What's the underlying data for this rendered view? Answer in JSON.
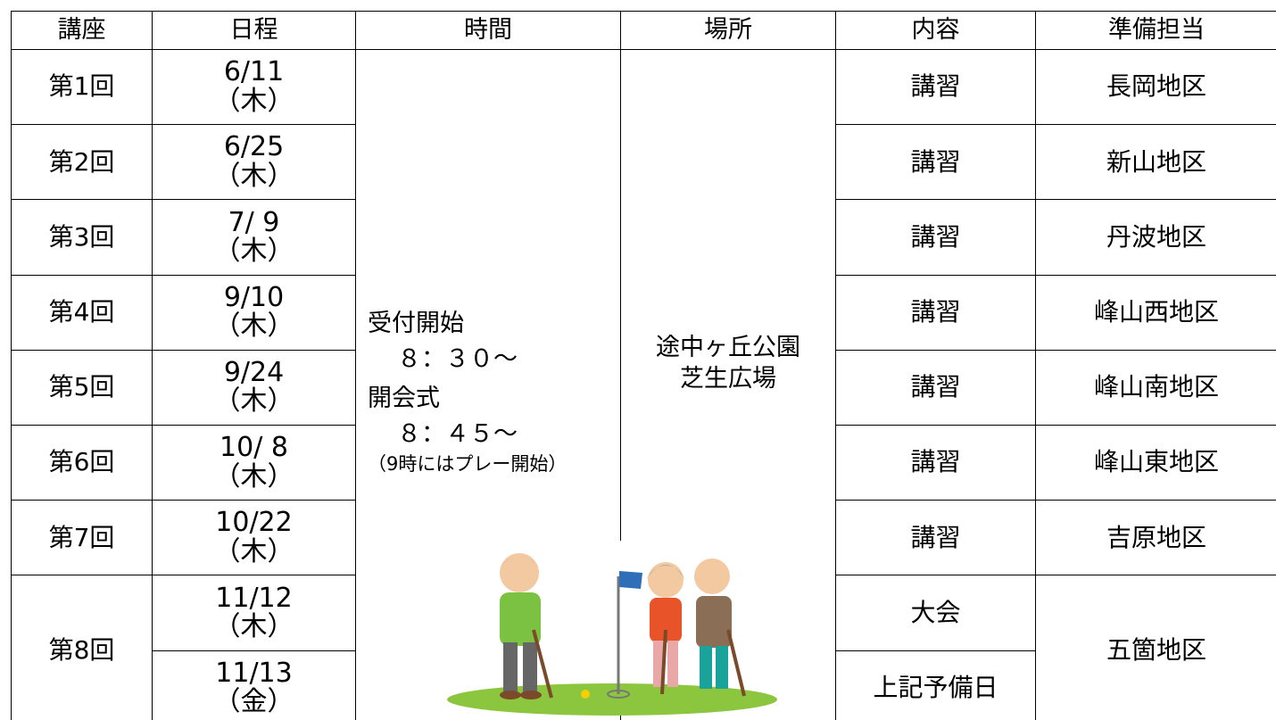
{
  "header": [
    "講座",
    "日程",
    "時間",
    "場所",
    "内容",
    "準備担当"
  ],
  "rows": [
    {
      "lecture": "第1回",
      "date": "6/11",
      "weekday": "（木）",
      "content": "講習",
      "prep": "長岡地区"
    },
    {
      "lecture": "第2回",
      "date": "6/25",
      "weekday": "（木）",
      "content": "講習",
      "prep": "新山地区"
    },
    {
      "lecture": "第3回",
      "date": "7/ 9",
      "weekday": "（木）",
      "content": "講習",
      "prep": "丹波地区"
    },
    {
      "lecture": "第4回",
      "date": "9/10",
      "weekday": "（木）",
      "content": "講習",
      "prep": "峰山西地区"
    },
    {
      "lecture": "第5回",
      "date": "9/24",
      "weekday": "（木）",
      "content": "講習",
      "prep": "峰山南地区"
    },
    {
      "lecture": "第6回",
      "date": "10/ 8",
      "weekday": "（木）",
      "content": "講習",
      "prep": "峰山東地区"
    },
    {
      "lecture": "第7回",
      "date": "10/22",
      "weekday": "（木）",
      "content": "講習",
      "prep": "吉原地区"
    }
  ],
  "final": {
    "lecture": "第8回",
    "days": [
      {
        "date": "11/12",
        "weekday": "（木）",
        "content": "大会"
      },
      {
        "date": "11/13",
        "weekday": "（金）",
        "content": "上記予備日"
      }
    ],
    "prep": "五箇地区"
  },
  "time": {
    "lines": [
      "受付開始",
      "８：３０～",
      "開会式",
      "８：４５～",
      "（9時にはプレー開始）"
    ]
  },
  "place": {
    "lines": [
      "途中ヶ丘公園",
      "芝生広場"
    ]
  }
}
